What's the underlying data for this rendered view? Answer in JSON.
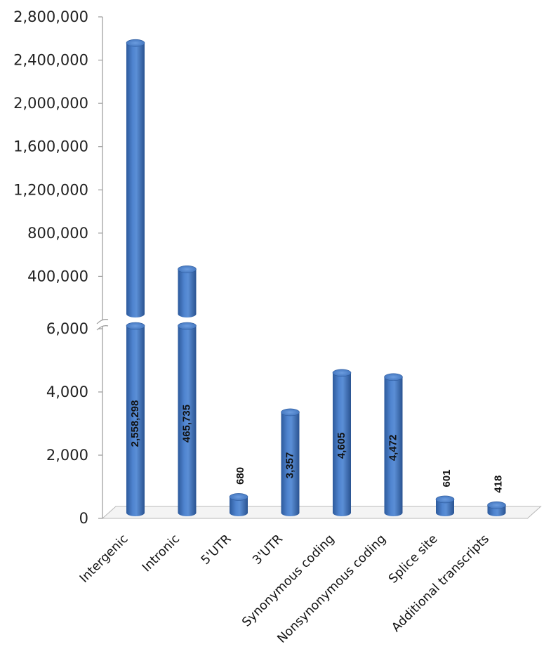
{
  "chart_data": {
    "type": "bar",
    "style": "3d-cylinder",
    "bar_color": "#4a7cc4",
    "categories": [
      "Intergenic",
      "Intronic",
      "5'UTR",
      "3'UTR",
      "Synonymous coding",
      "Nonsynonymous coding",
      "Splice site",
      "Additional transcripts"
    ],
    "values": [
      2558298,
      465735,
      680,
      3357,
      4605,
      4472,
      601,
      418
    ],
    "value_labels": [
      "2,558,298",
      "465,735",
      "680",
      "3,357",
      "4,605",
      "4,472",
      "601",
      "418"
    ],
    "axis_break": {
      "lower": {
        "ylim": [
          0,
          6000
        ],
        "ticks": [
          0,
          2000,
          4000,
          6000
        ],
        "tick_labels": [
          "0",
          "2,000",
          "4,000",
          "6,000"
        ]
      },
      "upper": {
        "ylim": [
          0,
          2800000
        ],
        "ticks": [
          400000,
          800000,
          1200000,
          1600000,
          2000000,
          2400000,
          2800000
        ],
        "tick_labels": [
          "400,000",
          "800,000",
          "1,200,000",
          "1,600,000",
          "2,000,000",
          "2,400,000",
          "2,800,000"
        ]
      }
    },
    "title": "",
    "xlabel": "",
    "ylabel": "",
    "grid": false,
    "legend": "none"
  }
}
